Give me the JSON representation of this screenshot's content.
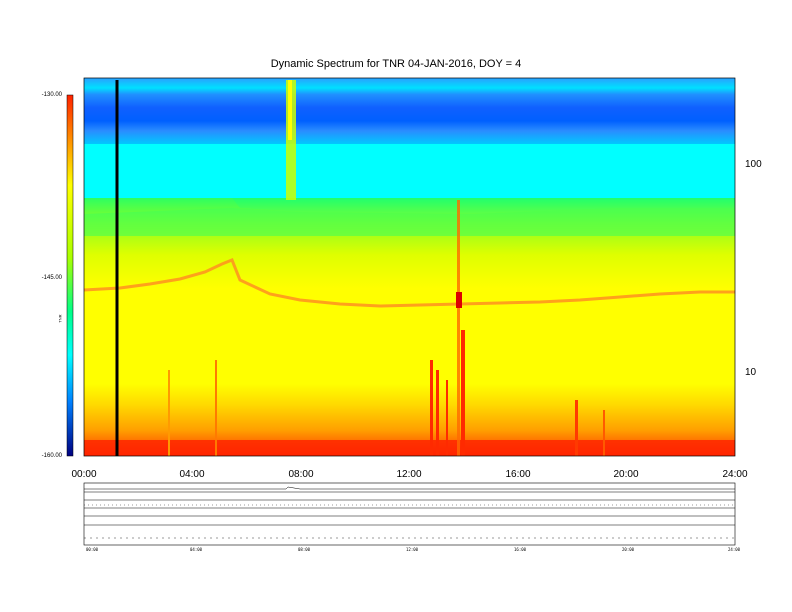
{
  "header": {
    "left_line1": "​",
    "left_line2": "​",
    "right_mid": "​",
    "right_top": "​",
    "right_line2": "​",
    "small_mid": "​"
  },
  "chart_data": {
    "type": "heatmap",
    "title": "Dynamic Spectrum for TNR 04-JAN-2016, DOY = 4",
    "xlabel": "",
    "ylabel": "",
    "x_ticks": [
      "00:00",
      "04:00",
      "08:00",
      "12:00",
      "16:00",
      "20:00",
      "24:00"
    ],
    "x_range_hours": [
      0,
      24
    ],
    "y_scale": "log",
    "y_ticks": [
      10,
      100
    ],
    "colorbar": {
      "ticks": [
        "-130.00",
        "-145.00",
        "-160.00"
      ],
      "range": [
        -160,
        -130
      ],
      "label": "TNR",
      "colors": [
        "#000066",
        "#0000ff",
        "#00c8ff",
        "#00ffff",
        "#00ff66",
        "#ccff00",
        "#ffff00",
        "#ffb000",
        "#ff3300",
        "#aa0000"
      ]
    },
    "marker_line_hour": 1.2,
    "features": {
      "blue_band": "top frequencies, all day",
      "cyan_band": "upper-mid frequencies",
      "yellow_body": "middle and lower frequencies",
      "red_floor": "lowest frequencies",
      "plasma_line": "orange trace near 30 units rising to ~40 at 05:00, ~25 after 06:00",
      "bursts_hours": [
        7.5,
        13.3,
        13.6,
        13.9,
        14.0
      ]
    }
  },
  "lower_panel": {
    "row_labels": [
      "​",
      "​",
      "​",
      "​",
      "​"
    ],
    "right_ticks": [
      "​",
      "​",
      "​",
      "​",
      "​",
      "​",
      "​",
      "​",
      "​",
      "​"
    ],
    "time_ticks": [
      "00:00",
      "04:00",
      "08:00",
      "12:00",
      "16:00",
      "20:00",
      "24:00"
    ],
    "footer_label": "​"
  }
}
